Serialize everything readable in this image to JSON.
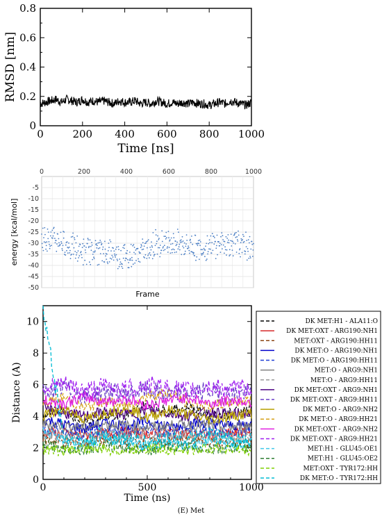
{
  "caption": "(E) Met",
  "chart_data": [
    {
      "type": "line",
      "xlabel": "Time [ns]",
      "ylabel": "RMSD [nm]",
      "xlim": [
        0,
        1000
      ],
      "ylim": [
        0,
        0.8
      ],
      "xticks": [
        "0",
        "200",
        "400",
        "600",
        "800",
        "1000"
      ],
      "yticks": [
        "0",
        "0.2",
        "0.4",
        "0.6",
        "0.8"
      ],
      "grid": false,
      "series": [
        {
          "color": "#000000",
          "x": [
            0,
            25,
            50,
            75,
            100,
            125,
            150,
            175,
            200,
            225,
            250,
            275,
            300,
            325,
            350,
            375,
            400,
            425,
            450,
            475,
            500,
            525,
            550,
            575,
            600,
            625,
            650,
            675,
            700,
            725,
            750,
            775,
            800,
            825,
            850,
            875,
            900,
            925,
            950,
            975,
            1000
          ],
          "values": [
            0.15,
            0.16,
            0.17,
            0.18,
            0.16,
            0.18,
            0.17,
            0.16,
            0.18,
            0.16,
            0.17,
            0.16,
            0.17,
            0.16,
            0.15,
            0.17,
            0.16,
            0.16,
            0.17,
            0.15,
            0.16,
            0.15,
            0.17,
            0.16,
            0.15,
            0.16,
            0.15,
            0.16,
            0.15,
            0.16,
            0.15,
            0.15,
            0.14,
            0.15,
            0.16,
            0.15,
            0.17,
            0.16,
            0.15,
            0.14,
            0.16
          ]
        }
      ]
    },
    {
      "type": "scatter",
      "xlabel": "Frame",
      "ylabel": "energy [kcal/mol]",
      "xlim": [
        0,
        1000
      ],
      "ylim": [
        -50,
        0
      ],
      "xticks": [
        "0",
        "200",
        "400",
        "600",
        "800",
        "1000"
      ],
      "yticks": [
        "-5",
        "-10",
        "-15",
        "-20",
        "-25",
        "-30",
        "-35",
        "-40",
        "-45",
        "-50"
      ],
      "x_axis_position": "top",
      "grid": true,
      "series": [
        {
          "color": "#4a7ec4",
          "x": [
            0,
            50,
            100,
            150,
            200,
            250,
            300,
            350,
            400,
            450,
            500,
            550,
            600,
            650,
            700,
            750,
            800,
            850,
            900,
            950,
            1000
          ],
          "values": [
            -27,
            -28,
            -30,
            -32,
            -34,
            -33,
            -34,
            -35,
            -36,
            -35,
            -32,
            -30,
            -29,
            -30,
            -31,
            -32,
            -31,
            -30,
            -30,
            -31,
            -32
          ]
        }
      ]
    },
    {
      "type": "line",
      "xlabel": "Time (ns)",
      "ylabel": "Distance (A)",
      "xlim": [
        0,
        1000
      ],
      "ylim": [
        0,
        11
      ],
      "xticks": [
        "0",
        "500",
        "1000"
      ],
      "yticks": [
        "0",
        "2",
        "4",
        "6",
        "8",
        "10"
      ],
      "grid": false,
      "legend": "right",
      "series": [
        {
          "name": "DK MET:H1 - ALA11:O",
          "color": "#000000",
          "dash": true,
          "x": [
            0,
            100,
            200,
            300,
            400,
            500,
            600,
            700,
            800,
            900,
            1000
          ],
          "values": [
            4.0,
            4.5,
            3.5,
            4.2,
            4.0,
            4.8,
            4.3,
            4.6,
            4.0,
            4.2,
            4.5
          ]
        },
        {
          "name": "DK MET:OXT - ARG190:NH1",
          "color": "#d62728",
          "dash": false,
          "x": [
            0,
            100,
            200,
            300,
            400,
            500,
            600,
            700,
            800,
            900,
            1000
          ],
          "values": [
            3.0,
            2.9,
            2.8,
            2.9,
            3.0,
            2.9,
            3.0,
            2.9,
            2.8,
            2.9,
            3.0
          ]
        },
        {
          "name": "MET:OXT - ARG190:HH11",
          "color": "#8b4513",
          "dash": true,
          "x": [
            0,
            100,
            200,
            300,
            400,
            500,
            600,
            700,
            800,
            900,
            1000
          ],
          "values": [
            2.5,
            2.4,
            2.3,
            2.5,
            2.4,
            2.3,
            2.4,
            2.5,
            2.4,
            2.3,
            2.4
          ]
        },
        {
          "name": "DK MET:O - ARG190:NH1",
          "color": "#0000cc",
          "dash": false,
          "x": [
            0,
            100,
            200,
            300,
            400,
            500,
            600,
            700,
            800,
            900,
            1000
          ],
          "values": [
            3.8,
            3.5,
            3.2,
            3.6,
            3.4,
            3.7,
            3.3,
            3.5,
            3.6,
            3.4,
            3.5
          ]
        },
        {
          "name": "DK MET:O - ARG190:HH11",
          "color": "#1f3fd6",
          "dash": true,
          "x": [
            0,
            100,
            200,
            300,
            400,
            500,
            600,
            700,
            800,
            900,
            1000
          ],
          "values": [
            3.2,
            3.0,
            2.8,
            3.1,
            2.9,
            3.2,
            2.8,
            3.0,
            3.1,
            2.9,
            3.0
          ]
        },
        {
          "name": "MET:O - ARG9:NH1",
          "color": "#808080",
          "dash": false,
          "x": [
            0,
            100,
            200,
            300,
            400,
            500,
            600,
            700,
            800,
            900,
            1000
          ],
          "values": [
            3.5,
            3.4,
            3.3,
            3.5,
            3.4,
            3.3,
            3.4,
            3.5,
            3.4,
            3.3,
            3.4
          ]
        },
        {
          "name": "MET:O - ARG9:HH11",
          "color": "#999999",
          "dash": true,
          "x": [
            0,
            100,
            200,
            300,
            400,
            500,
            600,
            700,
            800,
            900,
            1000
          ],
          "values": [
            2.9,
            2.8,
            2.7,
            2.9,
            2.8,
            2.7,
            2.8,
            2.9,
            2.8,
            2.7,
            2.8
          ]
        },
        {
          "name": "DK MET:OXT - ARG9:NH1",
          "color": "#4b0082",
          "dash": false,
          "x": [
            0,
            100,
            200,
            300,
            400,
            500,
            600,
            700,
            800,
            900,
            1000
          ],
          "values": [
            4.5,
            4.2,
            4.0,
            4.3,
            4.1,
            4.4,
            4.2,
            4.0,
            4.3,
            4.1,
            4.2
          ]
        },
        {
          "name": "DK MET:OXT - ARG9:HH11",
          "color": "#6a3fc8",
          "dash": true,
          "x": [
            0,
            100,
            200,
            300,
            400,
            500,
            600,
            700,
            800,
            900,
            1000
          ],
          "values": [
            5.5,
            5.8,
            5.2,
            5.6,
            5.4,
            5.7,
            5.3,
            5.5,
            5.6,
            5.4,
            5.5
          ]
        },
        {
          "name": "DK MET:O - ARG9:NH2",
          "color": "#b8a000",
          "dash": false,
          "x": [
            0,
            100,
            200,
            300,
            400,
            500,
            600,
            700,
            800,
            900,
            1000
          ],
          "values": [
            4.0,
            4.5,
            3.8,
            4.2,
            4.6,
            3.9,
            4.4,
            4.1,
            3.8,
            4.0,
            4.2
          ]
        },
        {
          "name": "DK MET:O - ARG9:HH21",
          "color": "#d4a017",
          "dash": true,
          "x": [
            0,
            100,
            200,
            300,
            400,
            500,
            600,
            700,
            800,
            900,
            1000
          ],
          "values": [
            4.8,
            5.2,
            4.5,
            5.0,
            4.6,
            5.3,
            5.5,
            4.8,
            4.6,
            4.9,
            5.0
          ]
        },
        {
          "name": "DK MET:OXT - ARG9:NH2",
          "color": "#e020e0",
          "dash": false,
          "x": [
            0,
            100,
            200,
            300,
            400,
            500,
            600,
            700,
            800,
            900,
            1000
          ],
          "values": [
            5.0,
            4.8,
            5.2,
            4.9,
            5.1,
            4.7,
            5.0,
            5.2,
            4.8,
            5.0,
            4.9
          ]
        },
        {
          "name": "DK MET:OXT - ARG9:HH21",
          "color": "#a020f0",
          "dash": true,
          "x": [
            0,
            100,
            200,
            300,
            400,
            500,
            600,
            700,
            800,
            900,
            1000
          ],
          "values": [
            5.8,
            6.0,
            5.6,
            5.9,
            5.7,
            6.0,
            5.8,
            5.6,
            5.9,
            5.7,
            5.8
          ]
        },
        {
          "name": "MET:H1 - GLU45:OE1",
          "color": "#40c8e8",
          "dash": true,
          "x": [
            0,
            100,
            200,
            300,
            400,
            500,
            600,
            700,
            800,
            900,
            1000
          ],
          "values": [
            3.0,
            2.5,
            2.2,
            2.6,
            2.3,
            2.0,
            2.4,
            2.1,
            2.5,
            2.2,
            2.3
          ]
        },
        {
          "name": "MET:H1 - GLU45:OE2",
          "color": "#2e7d32",
          "dash": true,
          "x": [
            0,
            100,
            200,
            300,
            400,
            500,
            600,
            700,
            800,
            900,
            1000
          ],
          "values": [
            2.2,
            2.0,
            1.9,
            2.1,
            2.0,
            1.9,
            2.0,
            2.1,
            1.9,
            2.0,
            2.0
          ]
        },
        {
          "name": "MET:OXT - TYR172:HH",
          "color": "#7fd000",
          "dash": true,
          "x": [
            0,
            100,
            200,
            300,
            400,
            500,
            600,
            700,
            800,
            900,
            1000
          ],
          "values": [
            1.9,
            1.8,
            2.0,
            1.9,
            1.8,
            2.0,
            1.9,
            1.8,
            2.0,
            1.9,
            1.8
          ]
        },
        {
          "name": "DK MET:O - TYR172:HH",
          "color": "#00bcd4",
          "dash": true,
          "x": [
            0,
            100,
            200,
            300,
            400,
            500,
            600,
            700,
            800,
            900,
            1000
          ],
          "values": [
            10.8,
            2.6,
            2.4,
            2.8,
            2.5,
            2.3,
            2.6,
            2.4,
            2.7,
            2.5,
            2.4
          ]
        }
      ]
    }
  ]
}
